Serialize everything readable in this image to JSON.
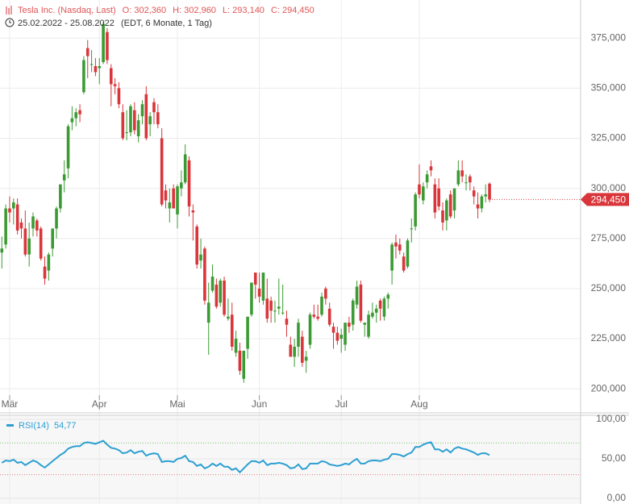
{
  "chart_data": {
    "type": "candlestick",
    "header": {
      "name": "Tesla Inc. (Nasdaq, Last)",
      "open": "O: 302,360",
      "high": "H: 302,960",
      "low": "L: 293,140",
      "close": "C: 294,450",
      "range": "25.02.2022 - 25.08.2022",
      "info": "(EDT, 6 Monate, 1 Tag)"
    },
    "categories": [
      null,
      null,
      "Mär",
      null,
      null,
      null,
      null,
      null,
      null,
      null,
      null,
      null,
      null,
      null,
      null,
      null,
      null,
      null,
      null,
      null,
      null,
      null,
      null,
      null,
      null,
      "Apr",
      null,
      null,
      null,
      null,
      null,
      null,
      null,
      null,
      null,
      null,
      null,
      null,
      null,
      null,
      null,
      null,
      null,
      null,
      null,
      "Mai",
      null,
      null,
      null,
      null,
      null,
      null,
      null,
      null,
      null,
      null,
      null,
      null,
      null,
      null,
      null,
      null,
      null,
      null,
      null,
      null,
      "Jun",
      null,
      null,
      null,
      null,
      null,
      null,
      null,
      null,
      null,
      null,
      null,
      null,
      null,
      null,
      null,
      null,
      null,
      null,
      null,
      null,
      "Jul",
      null,
      null,
      null,
      null,
      null,
      null,
      null,
      null,
      null,
      null,
      null,
      null,
      null,
      null,
      null,
      null,
      null,
      null,
      null,
      "Aug",
      null,
      null,
      null,
      null,
      null,
      null,
      null,
      null,
      null,
      null,
      null,
      null,
      null,
      null,
      null,
      null,
      null,
      null
    ],
    "open": [
      268,
      272,
      290,
      290,
      292,
      283,
      280,
      267,
      280,
      284,
      280,
      261,
      259,
      270,
      280,
      290,
      304,
      310,
      333,
      335,
      339,
      348,
      370,
      362,
      361,
      360,
      363,
      378,
      360,
      352,
      350,
      338,
      328,
      328,
      339,
      326,
      336,
      347,
      332,
      343,
      338,
      325,
      299,
      290,
      300,
      287,
      300,
      303,
      314,
      289,
      281,
      264,
      270,
      233,
      249,
      252,
      243,
      254,
      235,
      237,
      218,
      219,
      205,
      220,
      237,
      258,
      250,
      244,
      245,
      244,
      239,
      240,
      238,
      235,
      222,
      216,
      221,
      226,
      214,
      222,
      237,
      236,
      237,
      250,
      240,
      231,
      228,
      225,
      222,
      233,
      232,
      242,
      252,
      232,
      226,
      236,
      238,
      244,
      236,
      245,
      259,
      273,
      272,
      266,
      261,
      280,
      281,
      302,
      294,
      303,
      311,
      302,
      300,
      289,
      284,
      297,
      289,
      302,
      309,
      303,
      306,
      299,
      292,
      290,
      296,
      302.36
    ],
    "high": [
      276,
      292,
      296,
      295,
      295,
      285,
      289,
      283,
      288,
      285,
      281,
      266,
      268,
      280,
      291,
      302,
      314,
      332,
      341,
      340,
      342,
      366,
      374,
      369,
      365,
      365,
      383,
      380,
      362,
      355,
      353,
      342,
      339,
      342,
      343,
      337,
      344,
      351,
      338,
      345,
      342,
      330,
      302,
      300,
      302,
      302,
      309,
      322,
      316,
      292,
      282,
      275,
      271,
      253,
      262,
      255,
      255,
      256,
      245,
      243,
      229,
      223,
      219,
      236,
      253,
      258,
      258,
      258,
      255,
      246,
      244,
      255,
      252,
      239,
      226,
      225,
      235,
      229,
      219,
      238,
      242,
      242,
      248,
      251,
      243,
      233,
      231,
      230,
      233,
      236,
      245,
      254,
      254,
      233,
      239,
      243,
      242,
      245,
      246,
      248,
      273,
      277,
      275,
      268,
      275,
      285,
      298,
      312,
      303,
      309,
      314,
      305,
      305,
      293,
      295,
      299,
      300,
      314,
      314,
      307,
      307,
      301,
      298,
      297,
      302,
      302.96
    ],
    "low": [
      260,
      270,
      283,
      282,
      277,
      275,
      266,
      261,
      276,
      276,
      264,
      252,
      254,
      266,
      275,
      288,
      298,
      305,
      329,
      331,
      333,
      347,
      355,
      358,
      356,
      352,
      362,
      362,
      341,
      347,
      340,
      324,
      324,
      326,
      327,
      323,
      332,
      324,
      326,
      332,
      330,
      291,
      290,
      283,
      290,
      280,
      296,
      302,
      286,
      274,
      260,
      260,
      242,
      217,
      248,
      240,
      241,
      236,
      234,
      219,
      216,
      207,
      203,
      215,
      236,
      245,
      243,
      242,
      233,
      233,
      233,
      237,
      237,
      226,
      216,
      211,
      216,
      211,
      208,
      220,
      235,
      234,
      236,
      242,
      231,
      220,
      222,
      218,
      219,
      228,
      229,
      240,
      233,
      226,
      225,
      235,
      233,
      234,
      234,
      240,
      252,
      265,
      267,
      258,
      260,
      273,
      279,
      295,
      292,
      300,
      306,
      285,
      289,
      279,
      279,
      285,
      285,
      301,
      303,
      299,
      299,
      292,
      285,
      288,
      293,
      293.14
    ],
    "close": [
      270,
      290,
      288,
      293,
      279,
      280,
      267,
      275,
      286,
      279,
      265,
      255,
      267,
      280,
      290,
      302,
      307,
      331,
      335,
      338,
      337,
      364,
      366,
      362,
      358,
      361,
      382,
      364,
      352,
      351,
      342,
      325,
      328,
      341,
      329,
      334,
      342,
      325,
      336,
      338,
      332,
      292,
      294,
      293,
      290,
      301,
      303,
      317,
      291,
      288,
      262,
      267,
      244,
      243,
      256,
      241,
      254,
      237,
      236,
      221,
      225,
      209,
      219,
      236,
      253,
      252,
      246,
      258,
      235,
      239,
      239,
      241,
      238,
      232,
      216,
      221,
      233,
      213,
      216,
      237,
      236,
      235,
      246,
      245,
      232,
      228,
      224,
      227,
      233,
      231,
      244,
      251,
      234,
      233,
      237,
      238,
      240,
      240,
      245,
      247,
      272,
      271,
      269,
      259,
      274,
      280,
      297,
      297,
      301,
      307,
      309,
      288,
      291,
      283,
      294,
      286,
      300,
      309,
      306,
      303,
      303,
      296,
      290,
      296,
      297,
      294.45
    ],
    "up_color": "#3c9a34",
    "down_color": "#d9363b",
    "ylim": [
      188,
      394
    ],
    "yticks": [
      {
        "value": 200,
        "label": "200,000"
      },
      {
        "value": 225,
        "label": "225,000"
      },
      {
        "value": 250,
        "label": "250,000"
      },
      {
        "value": 275,
        "label": "275,000"
      },
      {
        "value": 300,
        "label": "300,000"
      },
      {
        "value": 325,
        "label": "325,000"
      },
      {
        "value": 350,
        "label": "350,000"
      },
      {
        "value": 375,
        "label": "375,000"
      }
    ],
    "grid": true,
    "last_price": {
      "value": 294.45,
      "label": "294,450"
    },
    "rsi": {
      "name": "RSI(14)",
      "last_label": "54,77",
      "color": "#2c9fd2",
      "values": [
        45,
        48,
        47,
        49,
        45,
        46,
        42,
        45,
        48,
        46,
        42,
        39,
        43,
        47,
        51,
        55,
        58,
        63,
        65,
        66,
        66,
        70,
        71,
        70,
        69,
        71,
        73,
        68,
        64,
        63,
        61,
        57,
        58,
        61,
        57,
        59,
        60,
        54,
        56,
        57,
        56,
        46,
        47,
        47,
        46,
        50,
        51,
        54,
        47,
        46,
        41,
        43,
        38,
        40,
        44,
        41,
        44,
        40,
        40,
        36,
        38,
        33,
        38,
        43,
        47,
        47,
        45,
        48,
        42,
        44,
        44,
        45,
        44,
        42,
        38,
        39,
        43,
        37,
        38,
        44,
        44,
        44,
        47,
        46,
        43,
        42,
        41,
        42,
        44,
        43,
        47,
        50,
        44,
        44,
        47,
        48,
        48,
        47,
        49,
        50,
        56,
        56,
        55,
        53,
        56,
        58,
        65,
        65,
        68,
        70,
        71,
        62,
        62,
        59,
        62,
        58,
        63,
        65,
        63,
        62,
        60,
        58,
        55,
        57,
        57,
        54.77
      ],
      "ylim": [
        0,
        100
      ],
      "yticks": [
        {
          "value": 0,
          "label": "0,00"
        },
        {
          "value": 50,
          "label": "50,00"
        },
        {
          "value": 100,
          "label": "100,00"
        }
      ],
      "levels": [
        {
          "value": 70,
          "color": "#7cc36d"
        },
        {
          "value": 30,
          "color": "#e27a7a"
        }
      ]
    }
  }
}
